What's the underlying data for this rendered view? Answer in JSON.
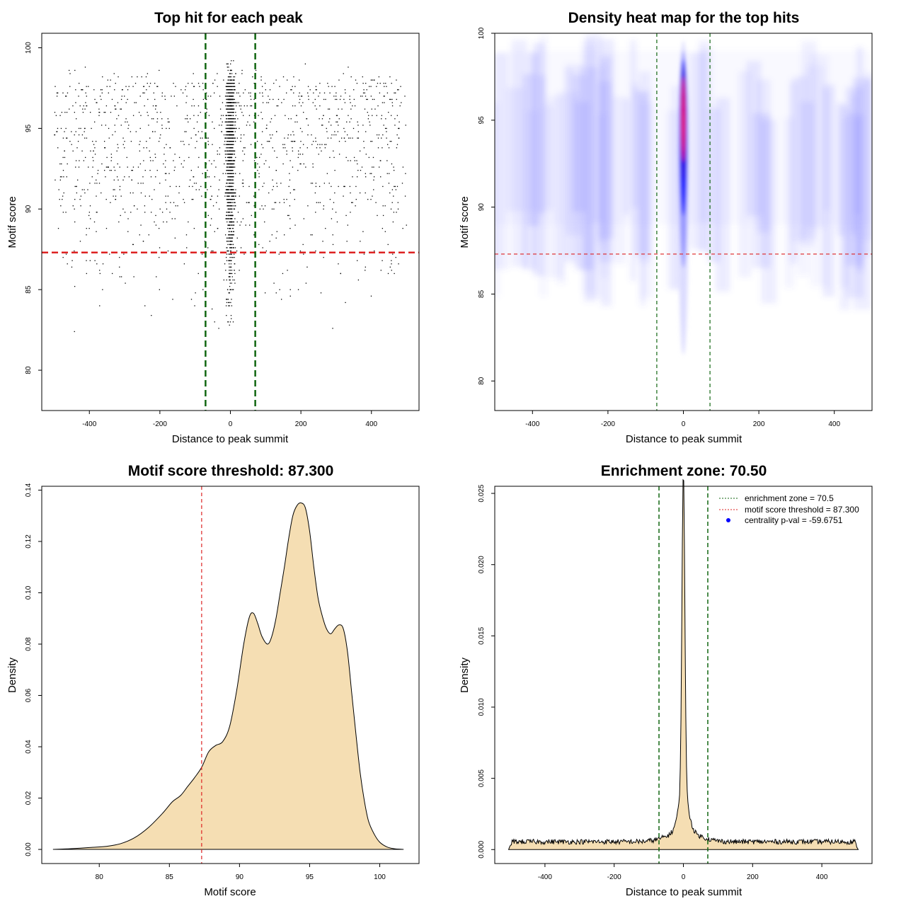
{
  "chart_data": [
    {
      "type": "scatter",
      "title": "Top hit for each peak",
      "xlabel": "Distance to peak summit",
      "ylabel": "Motif score",
      "xlim": [
        -535,
        535
      ],
      "ylim": [
        77.5,
        100.9
      ],
      "xticks": [
        -400,
        -200,
        0,
        200,
        400
      ],
      "yticks": [
        80,
        85,
        90,
        95,
        100
      ],
      "points_note_generator": {
        "n_uniform": 1300,
        "n_center": 1400
      },
      "hlines": [
        {
          "y": 87.3,
          "color": "#dd2222",
          "style": "dashed"
        }
      ],
      "vlines": [
        {
          "x": -70.5,
          "color": "#116611",
          "style": "dashed"
        },
        {
          "x": 70.5,
          "color": "#116611",
          "style": "dashed"
        }
      ],
      "point_color": "#000000"
    },
    {
      "type": "heatmap",
      "title": "Density heat map for the top hits",
      "xlabel": "Distance to peak summit",
      "ylabel": "Motif score",
      "xlim": [
        -500,
        500
      ],
      "ylim": [
        78.3,
        100
      ],
      "xticks": [
        -400,
        -200,
        0,
        200,
        400
      ],
      "yticks": [
        80,
        85,
        90,
        95,
        100
      ],
      "hlines": [
        {
          "y": 87.3,
          "color": "#dd2222",
          "style": "dashed"
        }
      ],
      "vlines": [
        {
          "x": -70.5,
          "color": "#116611",
          "style": "dashed"
        },
        {
          "x": 70.5,
          "color": "#116611",
          "style": "dashed"
        }
      ],
      "colorscale": [
        "#ffffff",
        "#0000ff",
        "#ff0000"
      ],
      "hotspot": {
        "x": 0,
        "y": 94.5
      }
    },
    {
      "type": "area",
      "title": "Motif score threshold: 87.300",
      "xlabel": "Motif score",
      "ylabel": "Density",
      "xlim": [
        75.9,
        102.8
      ],
      "ylim": [
        -0.0055,
        0.1415
      ],
      "xticks": [
        80,
        85,
        90,
        95,
        100
      ],
      "yticks": [
        0,
        0.02,
        0.04,
        0.06,
        0.08,
        0.1,
        0.12,
        0.14
      ],
      "ytick_labels": [
        "0.00",
        "0.02",
        "0.04",
        "0.06",
        "0.08",
        "0.10",
        "0.12",
        "0.14"
      ],
      "fill": "#f5deb3",
      "x": [
        76.7,
        78.0,
        79.5,
        80.5,
        81.5,
        82.5,
        83.5,
        84.5,
        85.2,
        85.8,
        86.3,
        86.8,
        87.3,
        87.8,
        88.3,
        88.8,
        89.3,
        89.8,
        90.3,
        90.7,
        91.0,
        91.3,
        91.6,
        92.0,
        92.3,
        92.6,
        92.9,
        93.2,
        93.5,
        93.8,
        94.1,
        94.4,
        94.7,
        95.0,
        95.3,
        95.6,
        95.9,
        96.2,
        96.5,
        96.8,
        97.1,
        97.4,
        97.7,
        98.0,
        98.3,
        98.6,
        98.9,
        99.2,
        99.6,
        100.0,
        100.5,
        101.0,
        101.7
      ],
      "y": [
        0.0,
        0.0003,
        0.0008,
        0.0012,
        0.0022,
        0.0045,
        0.0085,
        0.014,
        0.0185,
        0.021,
        0.0245,
        0.028,
        0.032,
        0.038,
        0.0405,
        0.042,
        0.048,
        0.062,
        0.08,
        0.0905,
        0.092,
        0.088,
        0.083,
        0.08,
        0.083,
        0.09,
        0.1,
        0.11,
        0.121,
        0.13,
        0.134,
        0.135,
        0.133,
        0.124,
        0.11,
        0.098,
        0.091,
        0.086,
        0.084,
        0.086,
        0.0875,
        0.086,
        0.077,
        0.061,
        0.045,
        0.03,
        0.019,
        0.011,
        0.006,
        0.0028,
        0.001,
        0.0003,
        0.0
      ],
      "vlines": [
        {
          "x": 87.3,
          "color": "#dd2222",
          "style": "dashed"
        }
      ]
    },
    {
      "type": "area",
      "title": "Enrichment zone: 70.50",
      "xlabel": "Distance to peak summit",
      "ylabel": "Density",
      "xlim": [
        -545,
        545
      ],
      "ylim": [
        -0.00098,
        0.0255
      ],
      "xticks": [
        -400,
        -200,
        0,
        200,
        400
      ],
      "yticks": [
        0,
        0.005,
        0.01,
        0.015,
        0.02,
        0.025
      ],
      "ytick_labels": [
        "0.000",
        "0.005",
        "0.010",
        "0.015",
        "0.020",
        "0.025"
      ],
      "fill": "#f5deb3",
      "peak": {
        "x": 0,
        "y": 0.0245
      },
      "baseline_density": 0.00055,
      "support": [
        -505,
        505
      ],
      "vlines": [
        {
          "x": -70.5,
          "color": "#116611",
          "style": "dashed"
        },
        {
          "x": 70.5,
          "color": "#116611",
          "style": "dashed"
        }
      ],
      "legend": {
        "placement": "top-right",
        "entries": [
          {
            "label": "enrichment zone = 70.5",
            "color": "#116611",
            "kind": "dotted-line"
          },
          {
            "label": "motif score threshold = 87.300",
            "color": "#dd2222",
            "kind": "dotted-line"
          },
          {
            "label": "centrality p-val = -59.6751",
            "color": "#0000ff",
            "kind": "point"
          }
        ]
      }
    }
  ]
}
